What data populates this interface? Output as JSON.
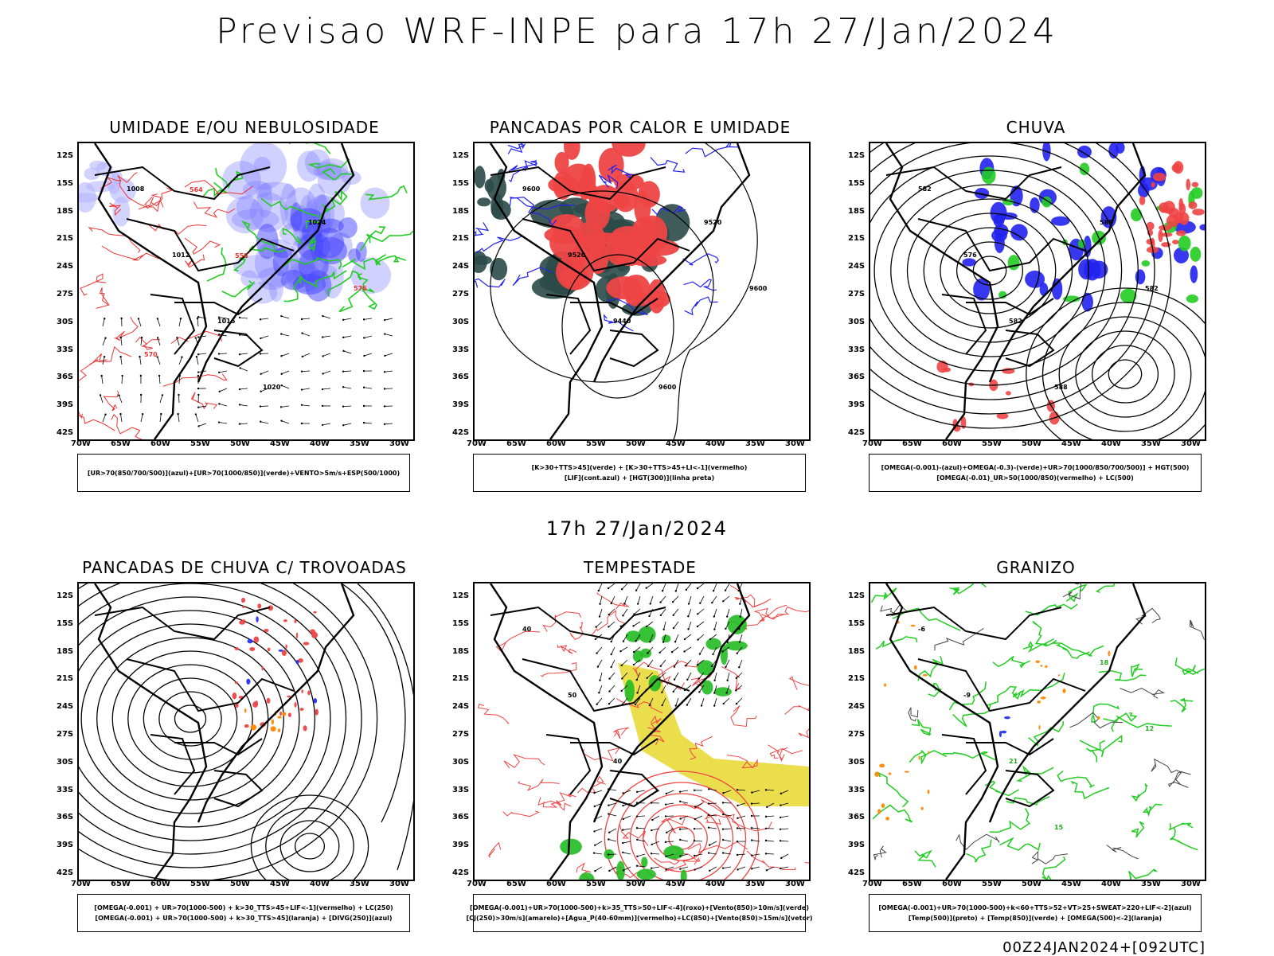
{
  "main_title": "Previsao WRF-INPE  para 17h 27/Jan/2024",
  "mid_title": "17h 27/Jan/2024",
  "footer": "00Z24JAN2024+[092UTC]",
  "lat_labels": [
    "12S",
    "15S",
    "18S",
    "21S",
    "24S",
    "27S",
    "30S",
    "33S",
    "36S",
    "39S",
    "42S"
  ],
  "lon_labels": [
    "70W",
    "65W",
    "60W",
    "55W",
    "50W",
    "45W",
    "40W",
    "35W",
    "30W"
  ],
  "panels": [
    {
      "title": "UMIDADE E/OU NEBULOSIDADE",
      "legend": [
        "[UR>70(850/700/500)](azul)+[UR>70(1000/850)](verde)+VENTO>5m/s+ESP(500/1000)"
      ],
      "labels": [
        "1008",
        "1012",
        "1016",
        "1020",
        "1024",
        "576",
        "570",
        "564",
        "558"
      ]
    },
    {
      "title": "PANCADAS POR CALOR E UMIDADE",
      "legend": [
        "[K>30+TTS>45](verde) + [K>30+TTS>45+LI<-1](vermelho)",
        "[LIF](cont.azul) + [HGT(300)](linha preta)"
      ],
      "labels": [
        "9600",
        "9520",
        "9440",
        "9600",
        "9520",
        "9600"
      ]
    },
    {
      "title": "CHUVA",
      "legend": [
        "[OMEGA(-0.001)-(azul)+OMEGA(-0.3)-(verde)+UR>70(1000/850/700/500)] + HGT(500)",
        "[OMEGA(-0.01)_UR>50(1000/850)(vermelho) + LC(500)"
      ],
      "labels": [
        "582",
        "576",
        "582",
        "588",
        "588",
        "582"
      ]
    },
    {
      "title": "PANCADAS DE CHUVA C/ TROVOADAS",
      "legend": [
        "[OMEGA(-0.001) + UR>70(1000-500) + k>30_TTS>45+LIF<-1](vermelho) + LC(250)",
        "[OMEGA(-0.001) + UR>70(1000-500) + k>30_TTS>45](laranja) + [DIVG(250)](azul)"
      ],
      "labels": []
    },
    {
      "title": "TEMPESTADE",
      "legend": [
        "[OMEGA(-0.001)+UR>70(1000-500)+k>35_TTS>50+LIF<-4](roxo)+[Vento(850)>10m/s](verde)",
        "[CJ(250)>30m/s](amarelo)+[Agua_P(40-60mm)](vermelho)+LC(850)+[Vento(850)>15m/s](vetor)"
      ],
      "labels": [
        "40",
        "50",
        "40"
      ]
    },
    {
      "title": "GRANIZO",
      "legend": [
        "[OMEGA(-0.001)+UR>70(1000-500)+k<60+TTS>52+VT>25+SWEAT>220+LIF<-2](azul)",
        "[Temp(500)](preto) + [Temp(850)](verde) + [OMEGA(500)<-2](laranja)"
      ],
      "labels": [
        "-6",
        "-9",
        "21",
        "15",
        "18",
        "12"
      ]
    }
  ]
}
